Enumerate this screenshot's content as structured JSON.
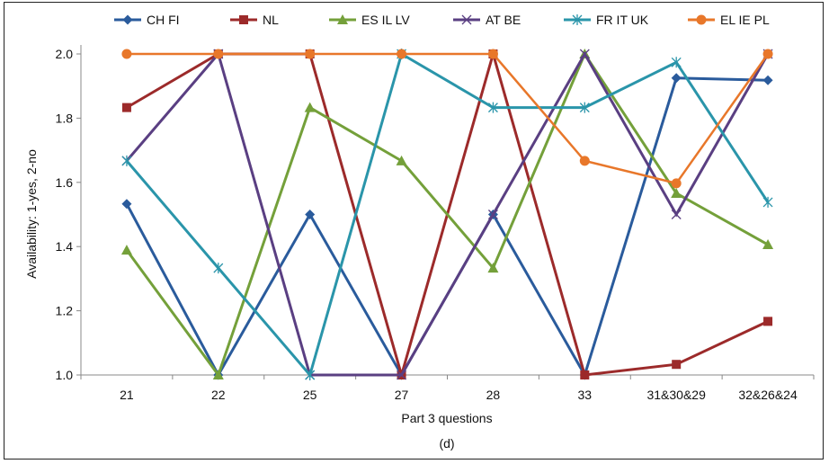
{
  "chart_data": {
    "type": "line",
    "title": "",
    "xlabel": "Part 3 questions",
    "ylabel": "Availability: 1-yes, 2-no",
    "caption": "(d)",
    "categories": [
      "21",
      "22",
      "25",
      "27",
      "28",
      "33",
      "31&30&29",
      "32&26&24"
    ],
    "ylim": [
      1.0,
      2.0
    ],
    "yticks": [
      "1.0",
      "1.2",
      "1.4",
      "1.6",
      "1.8",
      "2.0"
    ],
    "grid": false,
    "legend": "top",
    "series": [
      {
        "name": "CH FI",
        "color": "#2a5b9c",
        "marker": "diamond",
        "values": [
          1.533,
          1.0,
          1.5,
          1.0,
          1.5,
          1.0,
          1.925,
          1.918
        ]
      },
      {
        "name": "NL",
        "color": "#9c2a2a",
        "marker": "square",
        "values": [
          1.833,
          2.0,
          2.0,
          1.0,
          2.0,
          1.0,
          1.033,
          1.167
        ]
      },
      {
        "name": "ES IL LV",
        "color": "#74a03a",
        "marker": "triangle",
        "values": [
          1.389,
          1.0,
          1.833,
          1.667,
          1.333,
          2.0,
          1.566,
          1.406
        ]
      },
      {
        "name": "AT BE",
        "color": "#5a3f82",
        "marker": "x",
        "values": [
          1.667,
          2.0,
          1.0,
          1.0,
          1.5,
          2.0,
          1.5,
          2.0
        ]
      },
      {
        "name": "FR IT UK",
        "color": "#2a95aa",
        "marker": "asterisk",
        "values": [
          1.667,
          1.333,
          1.0,
          2.0,
          1.833,
          1.833,
          1.974,
          1.538
        ]
      },
      {
        "name": "EL IE PL",
        "color": "#e8772a",
        "marker": "circle",
        "values": [
          2.0,
          2.0,
          2.0,
          2.0,
          2.0,
          1.667,
          1.597,
          2.0
        ]
      }
    ]
  }
}
